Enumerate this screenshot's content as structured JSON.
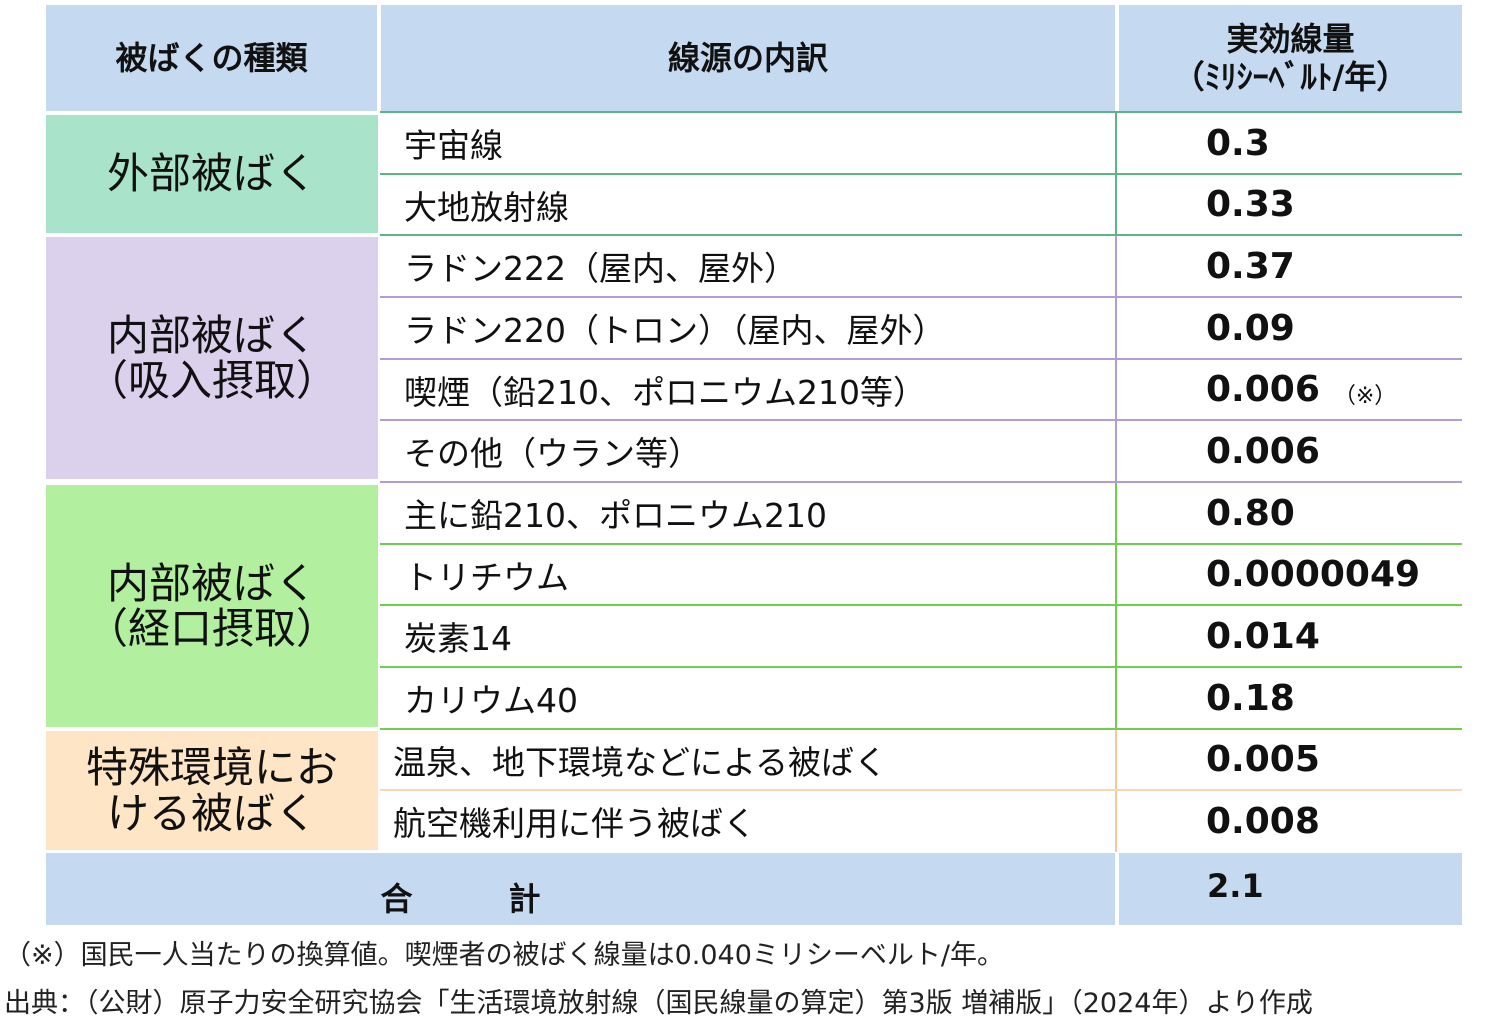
{
  "headers": {
    "type": "被ばくの種類",
    "source": "線源の内訳",
    "dose_line1": "実効線量",
    "dose_line2": "（ﾐﾘｼｰﾍﾞﾙﾄ/年）"
  },
  "groups": [
    {
      "label_lines": [
        "外部被ばく"
      ],
      "color": "#a9e3c9",
      "rows": [
        {
          "source": "宇宙線",
          "dose": "0.3"
        },
        {
          "source": "大地放射線",
          "dose": "0.33"
        }
      ]
    },
    {
      "label_lines": [
        "内部被ばく",
        "（吸入摂取）"
      ],
      "color": "#dcd1ec",
      "rows": [
        {
          "source": "ラドン222（屋内、屋外）",
          "dose": "0.37"
        },
        {
          "source": "ラドン220（トロン）（屋内、屋外）",
          "dose": "0.09"
        },
        {
          "source": "喫煙（鉛210、ポロニウム210等）",
          "dose": "0.006",
          "mark": "（※）"
        },
        {
          "source": "その他（ウラン等）",
          "dose": "0.006"
        }
      ]
    },
    {
      "label_lines": [
        "内部被ばく",
        "（経口摂取）"
      ],
      "color": "#b2ef9f",
      "rows": [
        {
          "source": "主に鉛210、ポロニウム210",
          "dose": "0.80"
        },
        {
          "source": "トリチウム",
          "dose": "0.0000049"
        },
        {
          "source": "炭素14",
          "dose": "0.014"
        },
        {
          "source": "カリウム40",
          "dose": "0.18"
        }
      ]
    },
    {
      "label_lines": [
        "特殊環境にお",
        "ける被ばく"
      ],
      "color": "#fde5c6",
      "rows": [
        {
          "source": "温泉、地下環境などによる被ばく",
          "dose": "0.005"
        },
        {
          "source": "航空機利用に伴う被ばく",
          "dose": "0.008"
        }
      ]
    }
  ],
  "total": {
    "label": "合　　　計",
    "value": "2.1"
  },
  "notes": {
    "footnote": "（※）国民一人当たりの換算値。喫煙者の被ばく線量は0.040ミリシーベルト/年。",
    "source": "出典：（公財）原子力安全研究協会「生活環境放射線（国民線量の算定）第3版 増補版」（2024年）より作成"
  },
  "colors": {
    "header_bg": "#c5d9f0",
    "outline": "#9dc3e6"
  }
}
